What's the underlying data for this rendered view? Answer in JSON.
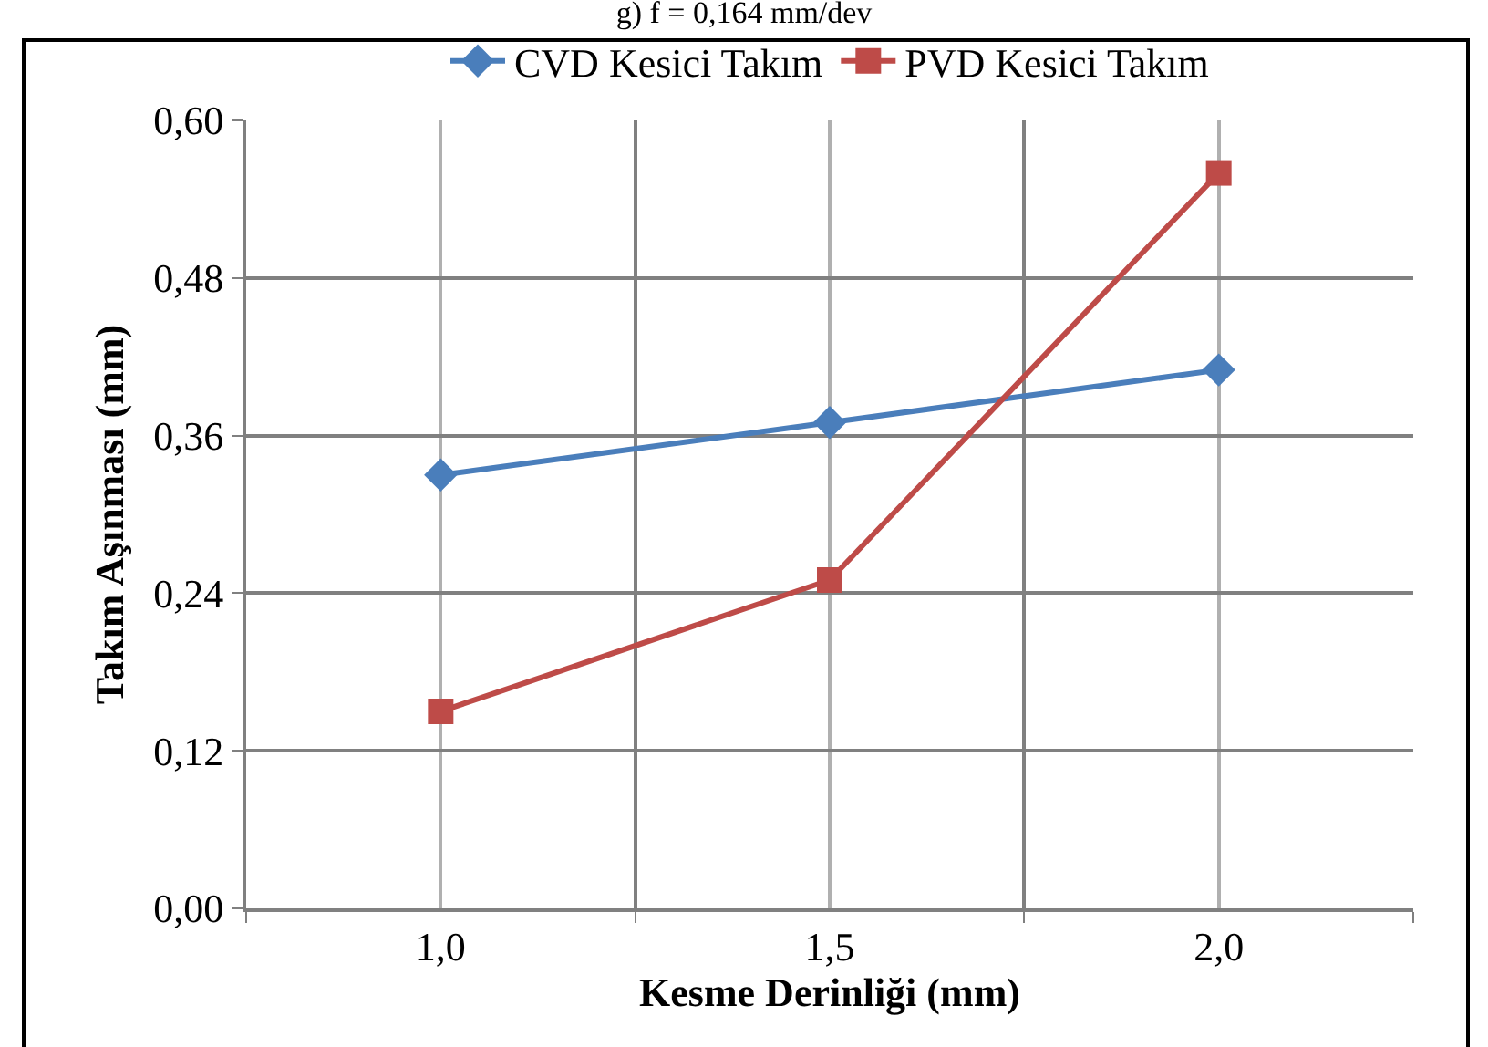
{
  "chart_data": {
    "type": "line",
    "title": "g) f = 0,164 mm/dev",
    "xlabel": "Kesme Derinliği (mm)",
    "ylabel": "Takım Aşınması (mm)",
    "categories": [
      "1,0",
      "1,5",
      "2,0"
    ],
    "series": [
      {
        "name": "CVD Kesici Takım",
        "color": "#4a7ebb",
        "marker": "diamond",
        "values": [
          0.33,
          0.37,
          0.41
        ]
      },
      {
        "name": "PVD Kesici Takım",
        "color": "#be4b48",
        "marker": "square",
        "values": [
          0.15,
          0.25,
          0.56
        ]
      }
    ],
    "ylim": [
      0,
      0.6
    ],
    "yticks": [
      {
        "value": 0,
        "label": "0,00"
      },
      {
        "value": 0.12,
        "label": "0,12"
      },
      {
        "value": 0.24,
        "label": "0,24"
      },
      {
        "value": 0.36,
        "label": "0,36"
      },
      {
        "value": 0.48,
        "label": "0,48"
      },
      {
        "value": 0.6,
        "label": "0,60"
      }
    ],
    "grid": true,
    "legend": "top",
    "line_style": "solid"
  }
}
